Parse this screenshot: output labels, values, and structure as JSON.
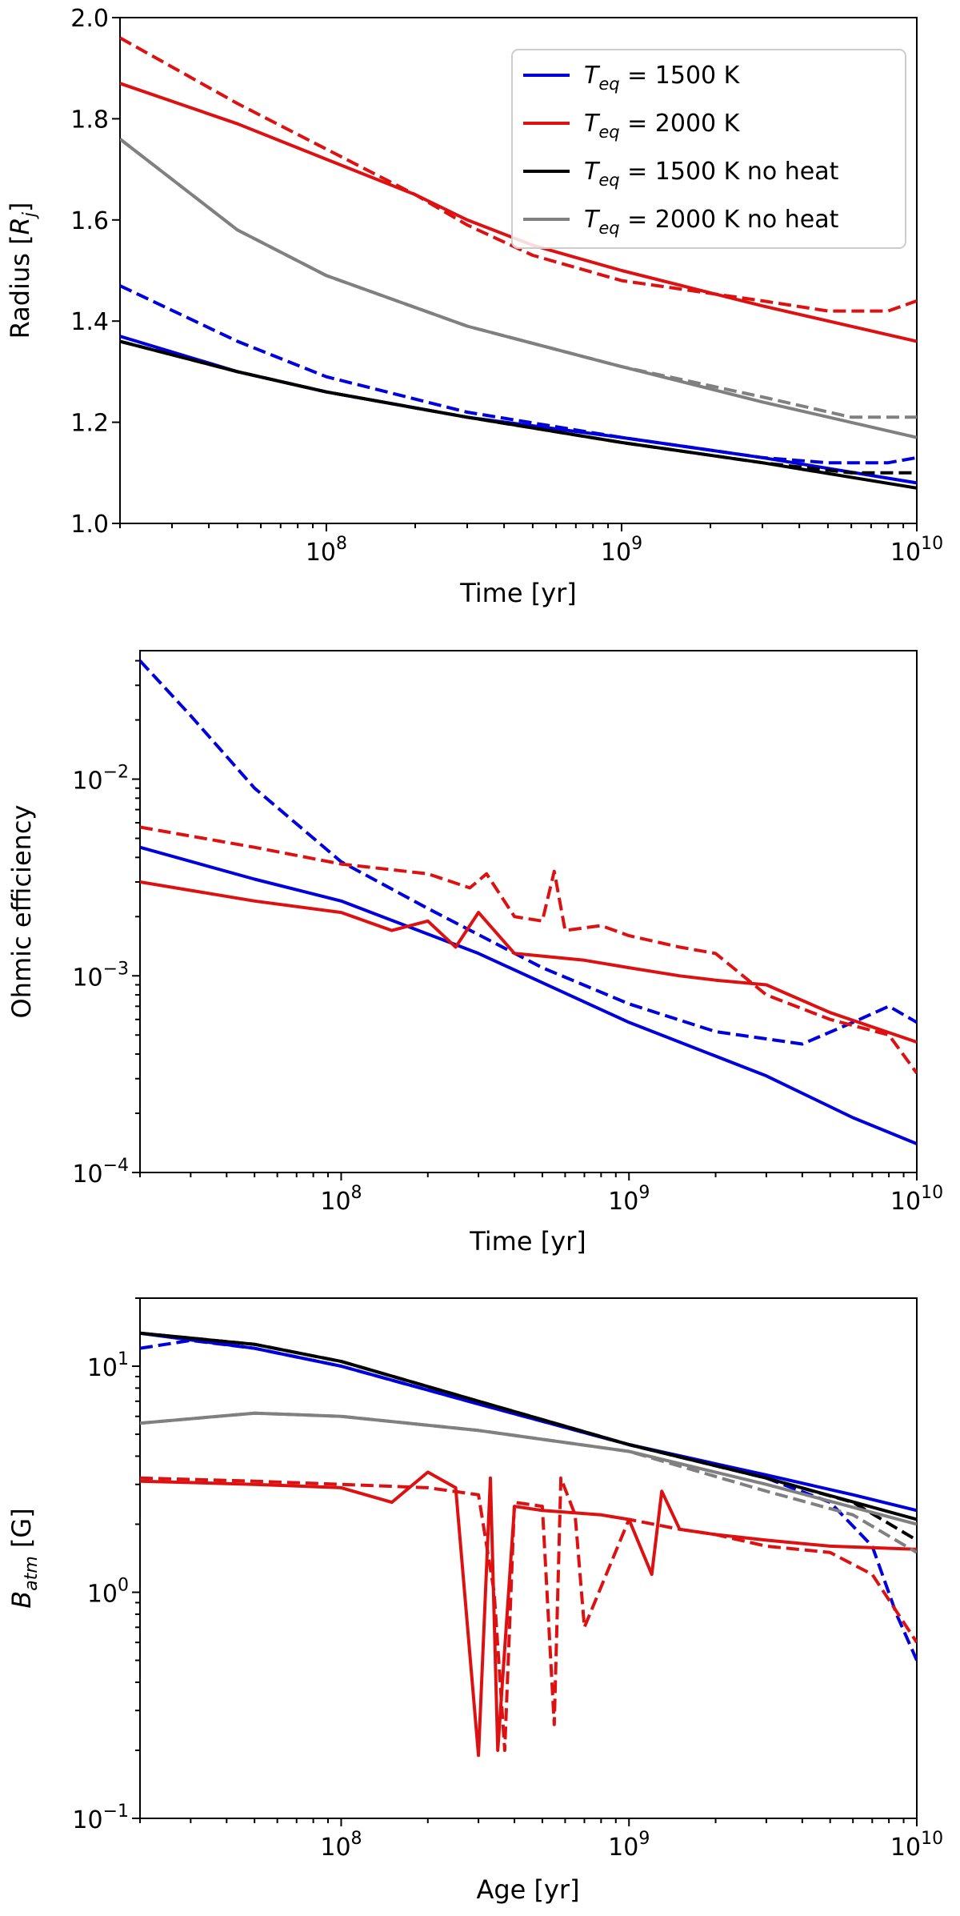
{
  "chart_data": [
    {
      "type": "line",
      "xlabel": "Time [yr]",
      "ylabel": "Radius [R_j]",
      "xscale": "log",
      "yscale": "linear",
      "xlim": [
        20000000.0,
        10000000000.0
      ],
      "ylim": [
        1.0,
        2.0
      ],
      "yticks": [
        "1.0",
        "1.2",
        "1.4",
        "1.6",
        "1.8",
        "2.0"
      ],
      "legend": {
        "placement": "top-right",
        "entries": [
          {
            "label": "T_eq = 1500 K",
            "color": "#0000dd"
          },
          {
            "label": "T_eq = 2000 K",
            "color": "#dd1111"
          },
          {
            "label": "T_eq = 1500 K no heat",
            "color": "#000000"
          },
          {
            "label": "T_eq = 2000 K no heat",
            "color": "#808080"
          }
        ]
      },
      "series": [
        {
          "color": "#0000dd",
          "dash": false,
          "x": [
            20000000.0,
            50000000.0,
            100000000.0,
            300000000.0,
            1000000000.0,
            3000000000.0,
            10000000000.0
          ],
          "y": [
            1.37,
            1.3,
            1.26,
            1.21,
            1.17,
            1.13,
            1.08
          ]
        },
        {
          "color": "#0000dd",
          "dash": true,
          "x": [
            20000000.0,
            50000000.0,
            100000000.0,
            300000000.0,
            1000000000.0,
            3000000000.0,
            5000000000.0,
            8000000000.0,
            10000000000.0
          ],
          "y": [
            1.47,
            1.36,
            1.29,
            1.22,
            1.17,
            1.13,
            1.12,
            1.12,
            1.13
          ]
        },
        {
          "color": "#dd1111",
          "dash": false,
          "x": [
            20000000.0,
            50000000.0,
            100000000.0,
            200000000.0,
            300000000.0,
            500000000.0,
            1000000000.0,
            3000000000.0,
            10000000000.0
          ],
          "y": [
            1.87,
            1.79,
            1.72,
            1.65,
            1.6,
            1.55,
            1.5,
            1.43,
            1.36
          ]
        },
        {
          "color": "#dd1111",
          "dash": true,
          "x": [
            20000000.0,
            50000000.0,
            100000000.0,
            200000000.0,
            300000000.0,
            500000000.0,
            1000000000.0,
            3000000000.0,
            5000000000.0,
            8000000000.0,
            10000000000.0
          ],
          "y": [
            1.96,
            1.83,
            1.74,
            1.65,
            1.59,
            1.53,
            1.48,
            1.44,
            1.42,
            1.42,
            1.44
          ]
        },
        {
          "color": "#000000",
          "dash": false,
          "x": [
            20000000.0,
            50000000.0,
            100000000.0,
            300000000.0,
            1000000000.0,
            3000000000.0,
            10000000000.0
          ],
          "y": [
            1.36,
            1.3,
            1.26,
            1.21,
            1.16,
            1.12,
            1.07
          ]
        },
        {
          "color": "#000000",
          "dash": true,
          "x": [
            20000000.0,
            50000000.0,
            100000000.0,
            300000000.0,
            1000000000.0,
            3000000000.0,
            6000000000.0,
            10000000000.0
          ],
          "y": [
            1.36,
            1.3,
            1.26,
            1.21,
            1.16,
            1.12,
            1.1,
            1.1
          ]
        },
        {
          "color": "#808080",
          "dash": false,
          "x": [
            20000000.0,
            50000000.0,
            100000000.0,
            300000000.0,
            1000000000.0,
            3000000000.0,
            10000000000.0
          ],
          "y": [
            1.76,
            1.58,
            1.49,
            1.39,
            1.31,
            1.24,
            1.17
          ]
        },
        {
          "color": "#808080",
          "dash": true,
          "x": [
            20000000.0,
            50000000.0,
            100000000.0,
            300000000.0,
            1000000000.0,
            3000000000.0,
            6000000000.0,
            10000000000.0
          ],
          "y": [
            1.76,
            1.58,
            1.49,
            1.39,
            1.31,
            1.25,
            1.21,
            1.21
          ]
        }
      ]
    },
    {
      "type": "line",
      "xlabel": "Time [yr]",
      "ylabel": "Ohmic efficiency",
      "xscale": "log",
      "yscale": "log",
      "xlim": [
        20000000.0,
        10000000000.0
      ],
      "ylim": [
        0.0001,
        0.045
      ],
      "series": [
        {
          "color": "#0000dd",
          "dash": false,
          "x": [
            20000000.0,
            50000000.0,
            100000000.0,
            300000000.0,
            1000000000.0,
            3000000000.0,
            6000000000.0,
            10000000000.0
          ],
          "y": [
            0.0045,
            0.0031,
            0.0024,
            0.0013,
            0.00058,
            0.00031,
            0.00019,
            0.00014
          ]
        },
        {
          "color": "#0000dd",
          "dash": true,
          "x": [
            20000000.0,
            30000000.0,
            50000000.0,
            100000000.0,
            200000000.0,
            500000000.0,
            1000000000.0,
            2000000000.0,
            4000000000.0,
            6000000000.0,
            8000000000.0,
            10000000000.0
          ],
          "y": [
            0.04,
            0.021,
            0.009,
            0.0038,
            0.0022,
            0.0011,
            0.00072,
            0.00052,
            0.00045,
            0.00058,
            0.0007,
            0.00058
          ]
        },
        {
          "color": "#dd1111",
          "dash": false,
          "x": [
            20000000.0,
            50000000.0,
            100000000.0,
            150000000.0,
            200000000.0,
            250000000.0,
            300000000.0,
            400000000.0,
            700000000.0,
            1000000000.0,
            1500000000.0,
            2000000000.0,
            3000000000.0,
            5000000000.0,
            10000000000.0
          ],
          "y": [
            0.003,
            0.0024,
            0.0021,
            0.0017,
            0.0019,
            0.0014,
            0.0021,
            0.0013,
            0.0012,
            0.0011,
            0.001,
            0.00095,
            0.0009,
            0.00065,
            0.00046
          ]
        },
        {
          "color": "#dd1111",
          "dash": true,
          "x": [
            20000000.0,
            50000000.0,
            100000000.0,
            200000000.0,
            280000000.0,
            320000000.0,
            400000000.0,
            500000000.0,
            550000000.0,
            600000000.0,
            800000000.0,
            1000000000.0,
            1500000000.0,
            2000000000.0,
            3000000000.0,
            5000000000.0,
            8000000000.0,
            10000000000.0
          ],
          "y": [
            0.0057,
            0.0045,
            0.0037,
            0.0033,
            0.0028,
            0.0033,
            0.002,
            0.0019,
            0.0034,
            0.0017,
            0.0018,
            0.0016,
            0.0014,
            0.0013,
            0.0008,
            0.0006,
            0.0005,
            0.00032
          ]
        }
      ]
    },
    {
      "type": "line",
      "xlabel": "Age [yr]",
      "ylabel": "B_atm [G]",
      "xscale": "log",
      "yscale": "log",
      "xlim": [
        20000000.0,
        10000000000.0
      ],
      "ylim": [
        0.1,
        20
      ],
      "series": [
        {
          "color": "#0000dd",
          "dash": false,
          "x": [
            20000000.0,
            50000000.0,
            100000000.0,
            300000000.0,
            1000000000.0,
            3000000000.0,
            6000000000.0,
            10000000000.0
          ],
          "y": [
            14,
            12,
            10,
            6.8,
            4.5,
            3.3,
            2.7,
            2.3
          ]
        },
        {
          "color": "#0000dd",
          "dash": true,
          "x": [
            20000000.0,
            30000000.0,
            50000000.0,
            100000000.0,
            300000000.0,
            1000000000.0,
            3000000000.0,
            5000000000.0,
            7000000000.0,
            8500000000.0,
            10000000000.0
          ],
          "y": [
            12,
            13,
            12,
            10,
            6.8,
            4.5,
            3.2,
            2.5,
            1.6,
            0.8,
            0.5
          ]
        },
        {
          "color": "#dd1111",
          "dash": false,
          "x": [
            20000000.0,
            50000000.0,
            100000000.0,
            150000000.0,
            200000000.0,
            250000000.0,
            300000000.0,
            330000000.0,
            350000000.0,
            400000000.0,
            500000000.0,
            800000000.0,
            1000000000.0,
            1200000000.0,
            1300000000.0,
            1500000000.0,
            2000000000.0,
            3000000000.0,
            5000000000.0,
            10000000000.0
          ],
          "y": [
            3.1,
            3.0,
            2.9,
            2.5,
            3.4,
            2.9,
            0.19,
            3.2,
            0.2,
            2.4,
            2.3,
            2.2,
            2.1,
            1.2,
            2.8,
            1.9,
            1.8,
            1.7,
            1.6,
            1.55
          ]
        },
        {
          "color": "#dd1111",
          "dash": true,
          "x": [
            20000000.0,
            50000000.0,
            100000000.0,
            200000000.0,
            300000000.0,
            340000000.0,
            370000000.0,
            400000000.0,
            500000000.0,
            550000000.0,
            580000000.0,
            650000000.0,
            700000000.0,
            1000000000.0,
            1500000000.0,
            2000000000.0,
            3000000000.0,
            5000000000.0,
            7000000000.0,
            10000000000.0
          ],
          "y": [
            3.2,
            3.1,
            3.0,
            2.9,
            2.7,
            1.0,
            0.2,
            2.5,
            2.4,
            0.26,
            3.2,
            2.2,
            0.7,
            2.1,
            1.9,
            1.8,
            1.6,
            1.5,
            1.2,
            0.6
          ]
        },
        {
          "color": "#000000",
          "dash": false,
          "x": [
            20000000.0,
            50000000.0,
            100000000.0,
            300000000.0,
            1000000000.0,
            3000000000.0,
            10000000000.0
          ],
          "y": [
            14,
            12.5,
            10.5,
            7,
            4.5,
            3.2,
            2.1
          ]
        },
        {
          "color": "#000000",
          "dash": true,
          "x": [
            20000000.0,
            50000000.0,
            100000000.0,
            300000000.0,
            1000000000.0,
            3000000000.0,
            6000000000.0,
            10000000000.0
          ],
          "y": [
            14,
            12.5,
            10.5,
            7,
            4.5,
            3.2,
            2.5,
            1.7
          ]
        },
        {
          "color": "#808080",
          "dash": false,
          "x": [
            20000000.0,
            50000000.0,
            100000000.0,
            300000000.0,
            1000000000.0,
            3000000000.0,
            10000000000.0
          ],
          "y": [
            5.6,
            6.2,
            6.0,
            5.2,
            4.2,
            3.0,
            2.0
          ]
        },
        {
          "color": "#808080",
          "dash": true,
          "x": [
            20000000.0,
            50000000.0,
            100000000.0,
            300000000.0,
            1000000000.0,
            3000000000.0,
            6000000000.0,
            10000000000.0
          ],
          "y": [
            5.6,
            6.2,
            6.0,
            5.2,
            4.2,
            2.8,
            2.2,
            1.5
          ]
        }
      ]
    }
  ],
  "labels": {
    "x_major_ticks": [
      "10^8",
      "10^9",
      "10^10"
    ],
    "panel2_yticks": [
      "10^-4",
      "10^-3",
      "10^-2"
    ],
    "panel3_yticks": [
      "10^-1",
      "10^0",
      "10^1"
    ]
  }
}
